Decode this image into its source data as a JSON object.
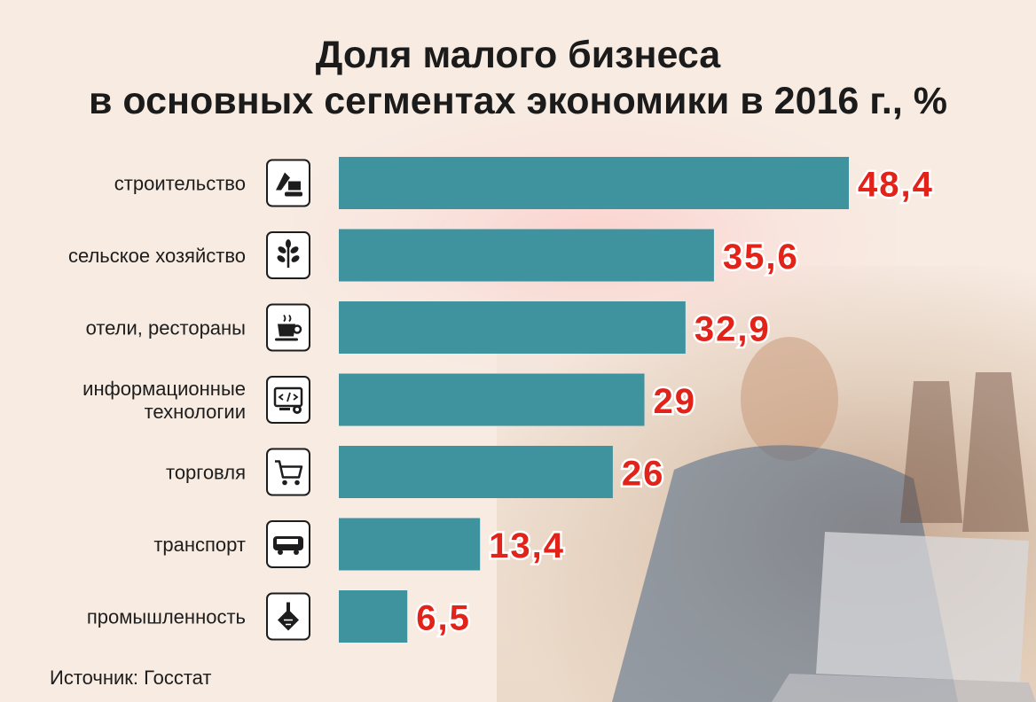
{
  "chart_data": {
    "type": "bar",
    "orientation": "horizontal",
    "title": "Доля малого бизнеса\nв основных сегментах экономики в 2016 г., %",
    "categories": [
      "строительство",
      "сельское хозяйство",
      "отели, рестораны",
      "информационные\nтехнологии",
      "торговля",
      "транспорт",
      "промышленность"
    ],
    "icons": [
      "excavator-icon",
      "sprout-icon",
      "coffee-cup-icon",
      "computer-code-icon",
      "shopping-cart-icon",
      "bus-icon",
      "factory-icon"
    ],
    "values": [
      48.4,
      35.6,
      32.9,
      29,
      26,
      13.4,
      6.5
    ],
    "value_labels": [
      "48,4",
      "35,6",
      "32,9",
      "29",
      "26",
      "13,4",
      "6,5"
    ],
    "xlim": [
      0,
      48.4
    ],
    "grid": false,
    "legend": "none",
    "bar_color": "#3f939e",
    "value_color": "#e2231a"
  },
  "source": "Источник: Госстат"
}
